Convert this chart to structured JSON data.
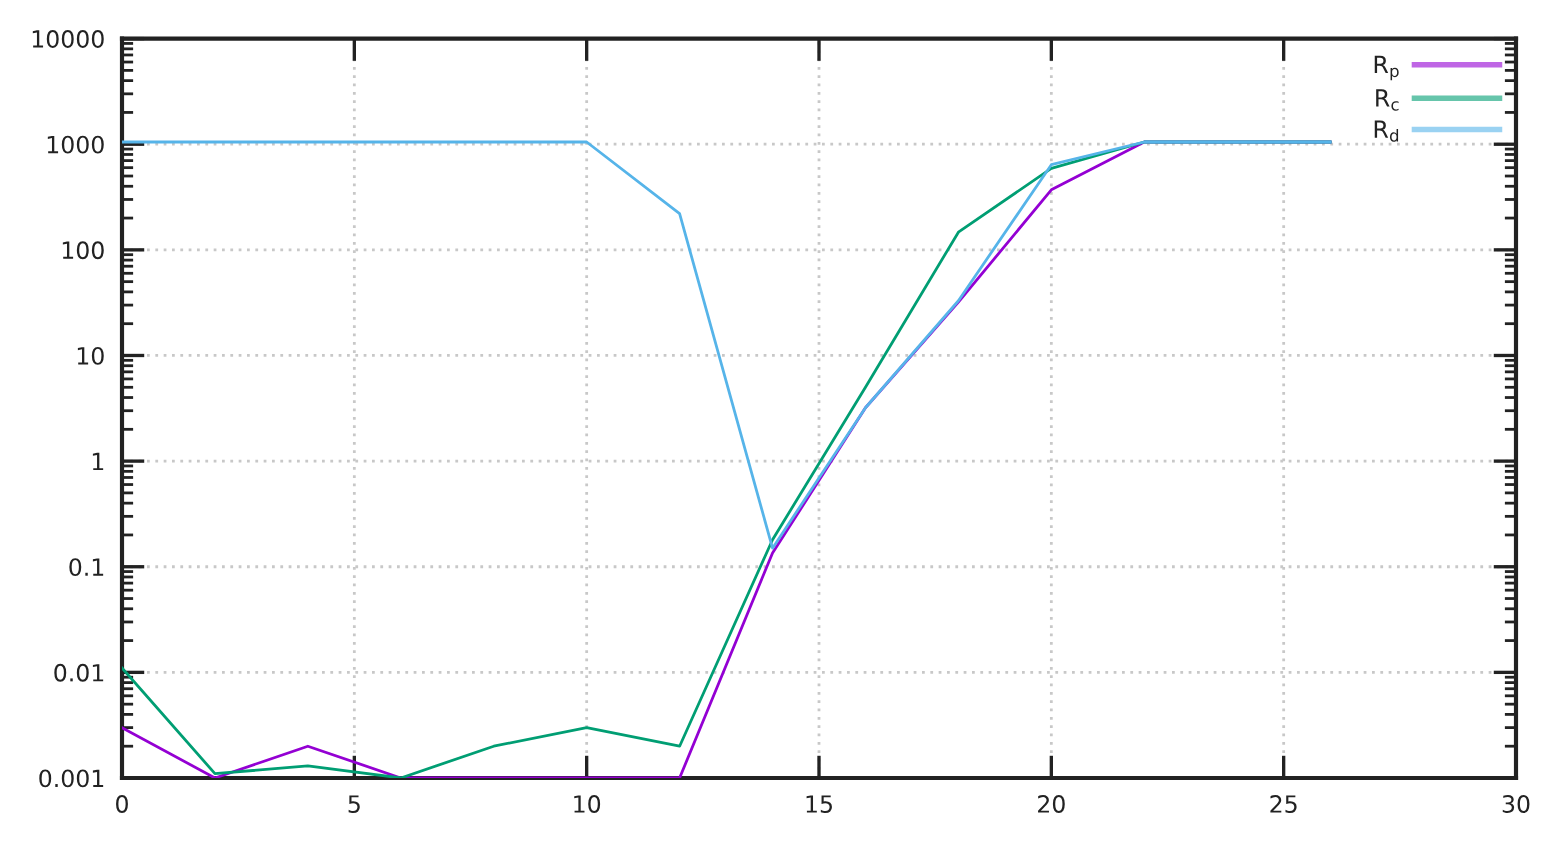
{
  "chart_data": {
    "type": "line",
    "x": [
      0,
      2,
      4,
      6,
      8,
      10,
      12,
      14,
      16,
      18,
      20,
      22,
      24,
      26
    ],
    "series": [
      {
        "name": "R$_{p}$",
        "color": "#9400d3",
        "values": [
          0.003,
          0.001,
          0.002,
          0.001,
          0.001,
          0.001,
          0.001,
          0.135,
          3.2,
          32,
          370,
          1050,
          1050,
          1050
        ]
      },
      {
        "name": "R$_{c}$",
        "color": "#009e73",
        "values": [
          0.011,
          0.0011,
          0.0013,
          0.001,
          0.002,
          0.003,
          0.002,
          0.18,
          5,
          147,
          590,
          1050,
          1050,
          1050
        ]
      },
      {
        "name": "R$_{d}$",
        "color": "#56b4e9",
        "values": [
          1050,
          1050,
          1050,
          1050,
          1050,
          1050,
          220,
          0.15,
          3.2,
          33,
          640,
          1050,
          1050,
          1050
        ]
      }
    ],
    "xlim": [
      0,
      30
    ],
    "xticks": [
      0,
      5,
      10,
      15,
      20,
      25,
      30
    ],
    "ylim": [
      0.001,
      10000
    ],
    "yticks": [
      0.001,
      0.01,
      0.1,
      1,
      10,
      100,
      1000,
      10000
    ],
    "log": "y",
    "grid": true,
    "legend": "top right",
    "line_style": "solid"
  }
}
